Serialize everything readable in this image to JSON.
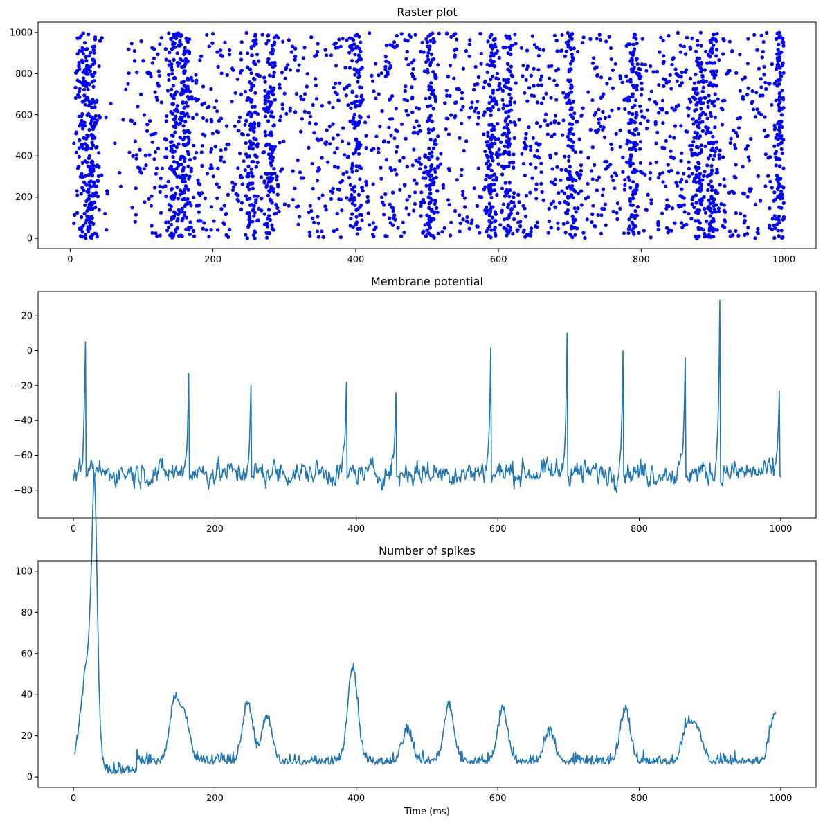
{
  "colors": {
    "raster": "#0000ff",
    "line": "#1f77b4",
    "axes": "#000000",
    "background": "#ffffff"
  },
  "chart_data": [
    {
      "type": "scatter",
      "title": "Raster plot",
      "xlabel": "",
      "ylabel": "",
      "xlim": [
        -45,
        1045
      ],
      "ylim": [
        -50,
        1050
      ],
      "xticks": [
        0,
        200,
        400,
        600,
        800,
        1000
      ],
      "yticks": [
        0,
        200,
        400,
        600,
        800,
        1000
      ],
      "description_values": {
        "time_range": [
          5,
          1000
        ],
        "neuron_range": [
          0,
          1000
        ],
        "dense_bursts_ms": [
          20,
          30,
          145,
          160,
          255,
          280,
          400,
          505,
          590,
          615,
          700,
          790,
          880,
          900,
          995
        ],
        "point_count_approx": 5000
      }
    },
    {
      "type": "line",
      "title": "Membrane potential",
      "xlabel": "",
      "ylabel": "",
      "xlim": [
        -50,
        1050
      ],
      "ylim": [
        -96,
        34
      ],
      "xticks": [
        0,
        200,
        400,
        600,
        800,
        1000
      ],
      "yticks": [
        -80,
        -60,
        -40,
        -20,
        0,
        20
      ],
      "spikes": [
        {
          "t": 17,
          "v": 5
        },
        {
          "t": 163,
          "v": -13
        },
        {
          "t": 251,
          "v": -20
        },
        {
          "t": 386,
          "v": -18
        },
        {
          "t": 456,
          "v": -24
        },
        {
          "t": 590,
          "v": 2
        },
        {
          "t": 698,
          "v": 10
        },
        {
          "t": 777,
          "v": 0
        },
        {
          "t": 865,
          "v": -4
        },
        {
          "t": 914,
          "v": 29
        },
        {
          "t": 998,
          "v": -23
        }
      ],
      "baseline": -70,
      "x_end": 1000
    },
    {
      "type": "line",
      "title": "Number of spikes",
      "xlabel": "Time (ms)",
      "ylabel": "",
      "xlim": [
        -50,
        1050
      ],
      "ylim": [
        -5,
        105
      ],
      "xticks": [
        0,
        200,
        400,
        600,
        800,
        1000
      ],
      "yticks": [
        0,
        20,
        40,
        60,
        80,
        100
      ],
      "peaks": [
        {
          "t": 15,
          "v": 32
        },
        {
          "t": 26,
          "v": 53
        },
        {
          "t": 30,
          "v": 100
        },
        {
          "t": 143,
          "v": 35
        },
        {
          "t": 158,
          "v": 26
        },
        {
          "t": 246,
          "v": 34
        },
        {
          "t": 274,
          "v": 28
        },
        {
          "t": 395,
          "v": 51
        },
        {
          "t": 472,
          "v": 21
        },
        {
          "t": 531,
          "v": 33
        },
        {
          "t": 607,
          "v": 31
        },
        {
          "t": 673,
          "v": 20
        },
        {
          "t": 780,
          "v": 31
        },
        {
          "t": 868,
          "v": 23
        },
        {
          "t": 882,
          "v": 21
        },
        {
          "t": 992,
          "v": 30
        }
      ],
      "baseline": 6,
      "x_end": 993
    }
  ]
}
